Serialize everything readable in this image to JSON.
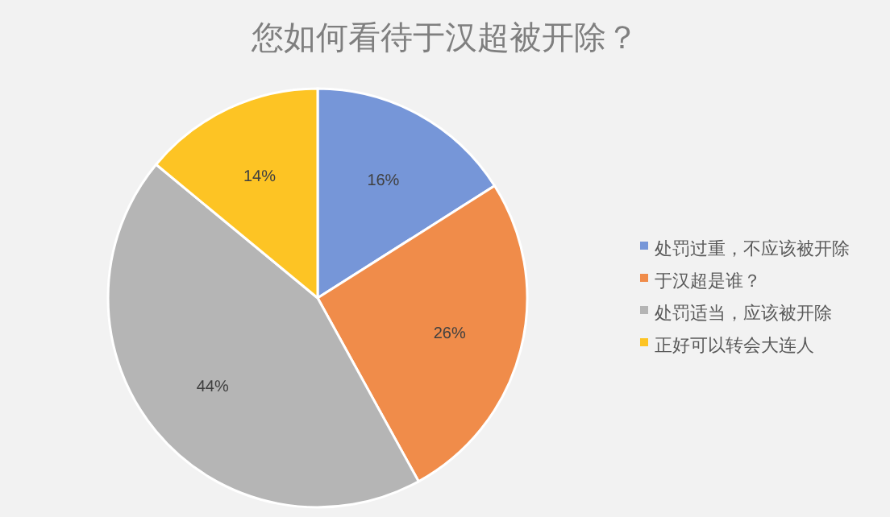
{
  "chart_data": {
    "type": "pie",
    "title": "您如何看待于汉超被开除？",
    "categories": [
      "处罚过重，不应该被开除",
      "于汉超是谁？",
      "处罚适当，应该被开除",
      "正好可以转会大连人"
    ],
    "values": [
      16,
      26,
      44,
      14
    ],
    "colors": [
      "#7696d8",
      "#f08c4a",
      "#b5b5b5",
      "#fdc424"
    ],
    "value_labels": [
      "16%",
      "26%",
      "44%",
      "14%"
    ],
    "legend": "right"
  }
}
